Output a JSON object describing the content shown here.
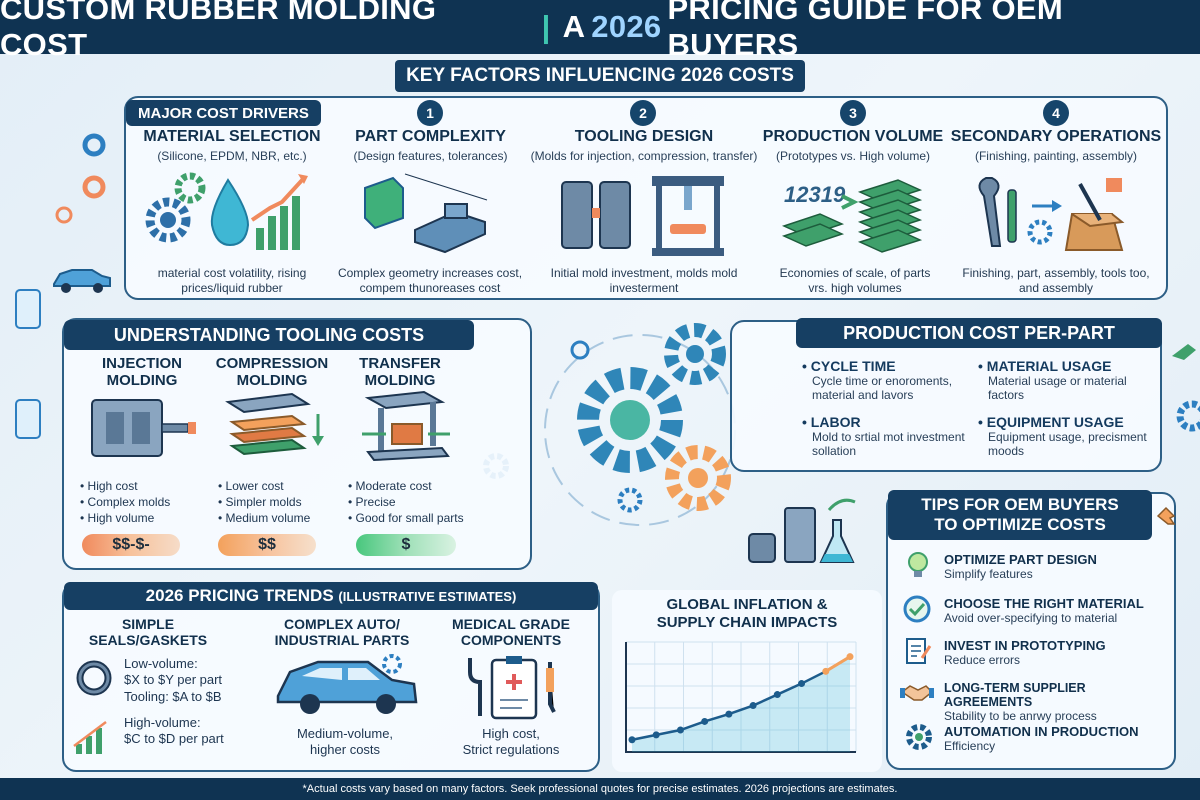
{
  "header": {
    "title_left": "CUSTOM RUBBER MOLDING COST",
    "separator": "|",
    "title_right_pre": "A ",
    "title_right_year": "2026",
    "title_right_post": " PRICING GUIDE FOR OEM BUYERS"
  },
  "ribbon": "KEY FACTORS INFLUENCING 2026 COSTS",
  "drivers": {
    "tab": "MAJOR COST DRIVERS",
    "items": [
      {
        "num": "",
        "title": "MATERIAL SELECTION",
        "sub": "(Silicone, EPDM, NBR, etc.)",
        "desc": "material cost volatility, rising prices/liquid rubber",
        "icon": "gears-droplet-chart-icon"
      },
      {
        "num": "1",
        "title": "PART COMPLEXITY",
        "sub": "(Design features, tolerances)",
        "desc": "Complex geometry increases cost, compem thunoreases cost",
        "icon": "3d-part-icon"
      },
      {
        "num": "2",
        "title": "TOOLING DESIGN",
        "sub": "(Molds for injection, compression, transfer)",
        "desc": "Initial mold investment, molds mold investerment",
        "icon": "mold-press-icon"
      },
      {
        "num": "3",
        "title": "PRODUCTION VOLUME",
        "sub": "(Prototypes vs. High volume)",
        "desc": "Economies of scale, of parts vrs. high volumes",
        "icon": "stacked-parts-icon"
      },
      {
        "num": "4",
        "title": "SECONDARY OPERATIONS",
        "sub": "(Finishing, painting, assembly)",
        "desc": "Finishing, part, assembly, tools too, and assembly",
        "icon": "tools-box-icon"
      }
    ],
    "volume_numbers": "12319"
  },
  "tooling": {
    "tab": "UNDERSTANDING TOOLING COSTS",
    "items": [
      {
        "title": "INJECTION MOLDING",
        "bullets": [
          "High cost",
          "Complex molds",
          "High volume"
        ],
        "price": "$$-$-",
        "color": "#f08a5d"
      },
      {
        "title": "COMPRESSION MOLDING",
        "bullets": [
          "Lower cost",
          "Simpler molds",
          "Medium volume"
        ],
        "price": "$$",
        "color": "#f3a15c"
      },
      {
        "title": "TRANSFER MOLDING",
        "bullets": [
          "Moderate cost",
          "Precise",
          "Good for small parts"
        ],
        "price": "$",
        "color": "#48c77d"
      }
    ]
  },
  "perpart": {
    "tab": "PRODUCTION COST PER-PART",
    "items": [
      {
        "title": "CYCLE TIME",
        "text": "Cycle time or enoroments, material and lavors"
      },
      {
        "title": "MATERIAL USAGE",
        "text": "Material usage or material factors"
      },
      {
        "title": "LABOR",
        "text": "Mold to srtial mot investment sollation"
      },
      {
        "title": "EQUIPMENT USAGE",
        "text": "Equipment usage, precisment moods"
      }
    ]
  },
  "tips": {
    "tab_line1": "TIPS FOR OEM BUYERS",
    "tab_line2": "TO OPTIMIZE COSTS",
    "items": [
      {
        "title": "OPTIMIZE PART DESIGN",
        "text": "Simplify features",
        "icon": "lightbulb-icon"
      },
      {
        "title": "CHOOSE THE RIGHT MATERIAL",
        "text": "Avoid over-specifying to material",
        "icon": "checkmark-circle-icon"
      },
      {
        "title": "INVEST IN PROTOTYPING",
        "text": "Reduce errors",
        "icon": "document-pen-icon"
      },
      {
        "title": "LONG-TERM SUPPLIER AGREEMENTS",
        "text": "Stability to be anrwy process",
        "icon": "handshake-icon"
      },
      {
        "title": "AUTOMATION IN PRODUCTION",
        "text": "Efficiency",
        "icon": "gear-icon"
      }
    ]
  },
  "trends": {
    "tab_main": "2026 PRICING TRENDS",
    "tab_note": "(ILLUSTRATIVE ESTIMATES)",
    "items": [
      {
        "title": "SIMPLE SEALS/GASKETS",
        "lines": [
          "Low-volume:",
          "$X to $Y per part",
          "Tooling: $A to $B",
          "High-volume:",
          "$C to $D per part"
        ]
      },
      {
        "title": "COMPLEX AUTO/ INDUSTRIAL PARTS",
        "lines": [
          "Medium-volume,",
          "higher costs"
        ]
      },
      {
        "title": "MEDICAL GRADE COMPONENTS",
        "lines": [
          "High cost,",
          "Strict regulations"
        ]
      }
    ]
  },
  "inflation": {
    "title_line1": "GLOBAL INFLATION &",
    "title_line2": "SUPPLY CHAIN IMPACTS"
  },
  "inflation_chart": {
    "type": "line",
    "values": [
      10,
      14,
      18,
      25,
      31,
      38,
      47,
      56,
      66,
      78
    ]
  },
  "footer": "*Actual costs vary based on many factors. Seek professional quotes for precise estimates. 2026 projections are estimates.",
  "colors": {
    "navy": "#0f3352",
    "teal": "#3fc6b0",
    "accent_blue": "#2d7fc1",
    "orange": "#f08a5d",
    "green": "#48c77d"
  }
}
